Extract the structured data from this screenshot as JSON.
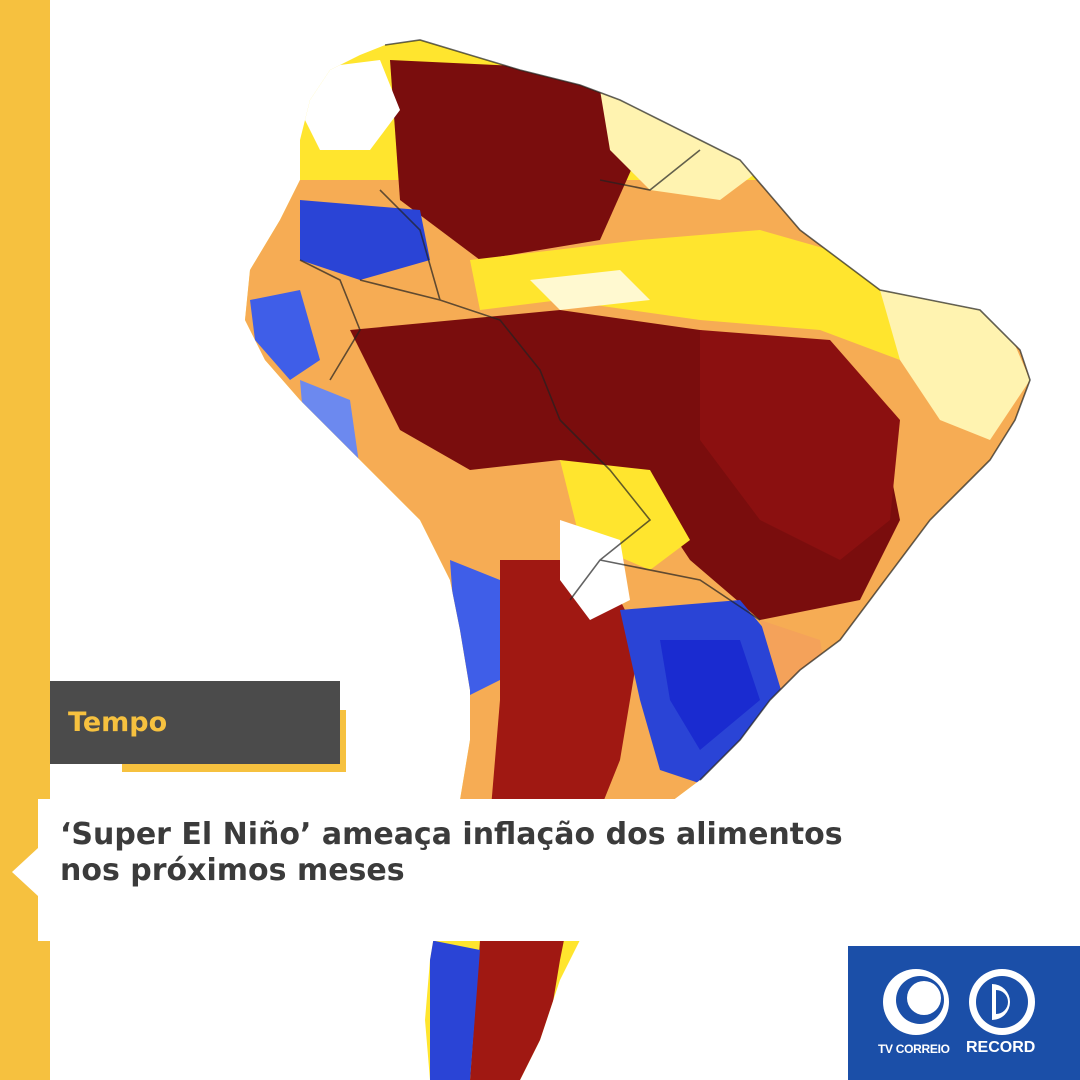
{
  "category": {
    "label": "Tempo"
  },
  "headline": {
    "line1": "‘Super El Niño’ ameaça inflação dos alimentos",
    "line2": "nos próximos meses"
  },
  "logos": {
    "tv_correio": "TV CORREIO",
    "record": "RECORD"
  },
  "map": {
    "subject": "South America precipitation anomaly map",
    "icon": "south-america-map"
  },
  "colors": {
    "accent_yellow": "#f6c13f",
    "tag_background": "#4b4b4b",
    "headline_text": "#3b3b3b",
    "logo_blue": "#1b4fa8",
    "map_dark_red": "#7a0d0d",
    "map_red": "#b01e16",
    "map_orange": "#f4a25a",
    "map_yellow": "#ffe52e",
    "map_blue": "#2a44d6"
  }
}
